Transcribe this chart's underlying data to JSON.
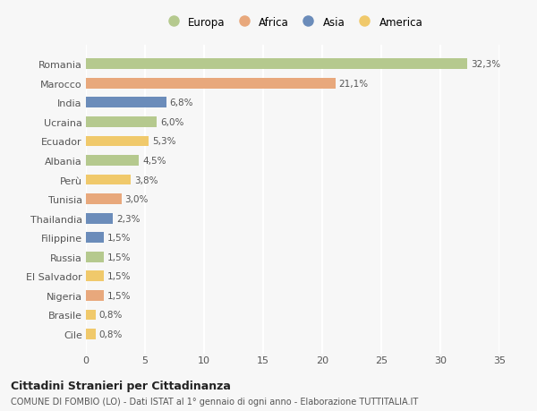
{
  "categories": [
    "Romania",
    "Marocco",
    "India",
    "Ucraina",
    "Ecuador",
    "Albania",
    "Perù",
    "Tunisia",
    "Thailandia",
    "Filippine",
    "Russia",
    "El Salvador",
    "Nigeria",
    "Brasile",
    "Cile"
  ],
  "values": [
    32.3,
    21.1,
    6.8,
    6.0,
    5.3,
    4.5,
    3.8,
    3.0,
    2.3,
    1.5,
    1.5,
    1.5,
    1.5,
    0.8,
    0.8
  ],
  "labels": [
    "32,3%",
    "21,1%",
    "6,8%",
    "6,0%",
    "5,3%",
    "4,5%",
    "3,8%",
    "3,0%",
    "2,3%",
    "1,5%",
    "1,5%",
    "1,5%",
    "1,5%",
    "0,8%",
    "0,8%"
  ],
  "continents": [
    "Europa",
    "Africa",
    "Asia",
    "Europa",
    "America",
    "Europa",
    "America",
    "Africa",
    "Asia",
    "Asia",
    "Europa",
    "America",
    "Africa",
    "America",
    "America"
  ],
  "colors": {
    "Europa": "#b5c98e",
    "Africa": "#e8a87c",
    "Asia": "#6b8cba",
    "America": "#f0c96b"
  },
  "legend_order": [
    "Europa",
    "Africa",
    "Asia",
    "America"
  ],
  "title": "Cittadini Stranieri per Cittadinanza",
  "subtitle": "COMUNE DI FOMBIO (LO) - Dati ISTAT al 1° gennaio di ogni anno - Elaborazione TUTTITALIA.IT",
  "xlim": [
    0,
    35
  ],
  "xticks": [
    0,
    5,
    10,
    15,
    20,
    25,
    30,
    35
  ],
  "background_color": "#f7f7f7",
  "grid_color": "#ffffff",
  "bar_height": 0.55,
  "figsize": [
    6.0,
    4.6
  ],
  "dpi": 100
}
